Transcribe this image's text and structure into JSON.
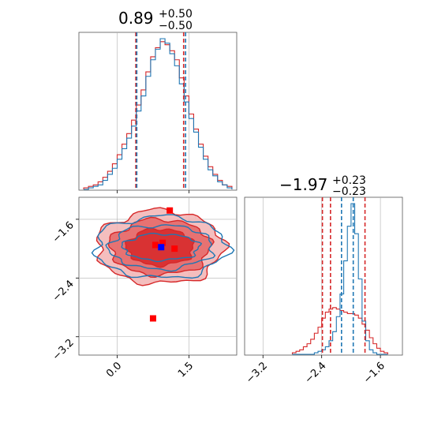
{
  "colors": {
    "red": "#d62728",
    "blue": "#1f77b4",
    "pink": "#f4a6a6",
    "marker_red": "#ff0000",
    "marker_blue": "#0000ff",
    "grid": "#b0b0b0"
  },
  "chart_data": [
    {
      "panel": "top-left",
      "type": "histogram",
      "title_main": "0.89",
      "title_sup": "+0.50",
      "title_sub": "−0.50",
      "xlim": [
        -0.8,
        2.5
      ],
      "grid": true,
      "quantiles": {
        "red": [
          0.39,
          1.39
        ],
        "blue": [
          0.41,
          1.43
        ]
      },
      "bins": [
        -0.7,
        -0.6,
        -0.5,
        -0.4,
        -0.3,
        -0.2,
        -0.1,
        0.0,
        0.1,
        0.2,
        0.3,
        0.4,
        0.5,
        0.6,
        0.7,
        0.8,
        0.9,
        1.0,
        1.1,
        1.2,
        1.3,
        1.4,
        1.5,
        1.6,
        1.7,
        1.8,
        1.9,
        2.0,
        2.1,
        2.2,
        2.3,
        2.4
      ],
      "series": [
        {
          "color": "red",
          "counts": [
            1,
            2,
            3,
            5,
            8,
            12,
            17,
            23,
            30,
            37,
            46,
            56,
            66,
            78,
            88,
            94,
            98,
            96,
            92,
            86,
            74,
            62,
            50,
            40,
            30,
            22,
            15,
            10,
            6,
            3,
            2
          ]
        },
        {
          "color": "blue",
          "counts": [
            0,
            1,
            2,
            3,
            6,
            10,
            14,
            20,
            27,
            34,
            42,
            52,
            62,
            75,
            86,
            93,
            100,
            97,
            90,
            82,
            70,
            58,
            47,
            38,
            28,
            20,
            13,
            9,
            5,
            3,
            1
          ]
        }
      ]
    },
    {
      "panel": "bottom-right",
      "type": "histogram",
      "title_main": "−1.97",
      "title_sup": "+0.23",
      "title_sub": "−0.23",
      "xlim": [
        -3.45,
        -1.3
      ],
      "grid": true,
      "xtick_labels": [
        "−3.2",
        "−2.4",
        "−1.6"
      ],
      "xtick_values": [
        -3.2,
        -2.4,
        -1.6
      ],
      "quantiles": {
        "red": [
          -2.39,
          -2.28,
          -1.81
        ],
        "blue": [
          -2.13,
          -1.97
        ]
      },
      "bins": [
        -2.8,
        -2.75,
        -2.7,
        -2.65,
        -2.6,
        -2.55,
        -2.5,
        -2.45,
        -2.4,
        -2.35,
        -2.3,
        -2.25,
        -2.2,
        -2.15,
        -2.1,
        -2.05,
        -2.0,
        -1.95,
        -1.9,
        -1.85,
        -1.8,
        -1.75,
        -1.7,
        -1.65,
        -1.6,
        -1.55,
        -1.5
      ],
      "series": [
        {
          "color": "red",
          "counts": [
            1,
            2,
            3,
            5,
            7,
            10,
            14,
            18,
            24,
            28,
            30,
            31,
            30,
            29,
            28,
            27,
            27,
            26,
            24,
            20,
            16,
            11,
            7,
            4,
            2,
            1
          ]
        },
        {
          "color": "blue",
          "counts": [
            0,
            0,
            0,
            0,
            0,
            0,
            1,
            2,
            3,
            5,
            9,
            15,
            25,
            40,
            62,
            85,
            100,
            80,
            50,
            22,
            9,
            3,
            1,
            0,
            0,
            0
          ]
        }
      ]
    },
    {
      "panel": "bottom-left",
      "type": "scatter",
      "xlim": [
        -0.8,
        2.5
      ],
      "ylim": [
        -3.45,
        -1.3
      ],
      "grid": true,
      "xtick_labels": [
        "0.0",
        "1.5"
      ],
      "xtick_values": [
        0.0,
        1.5
      ],
      "ytick_labels": [
        "−1.6",
        "−2.4",
        "−3.2"
      ],
      "ytick_values": [
        -1.6,
        -2.4,
        -3.2
      ],
      "red_points": [
        [
          1.1,
          -1.48
        ],
        [
          0.8,
          -1.95
        ],
        [
          0.95,
          -1.92
        ],
        [
          1.2,
          -2.0
        ],
        [
          0.75,
          -2.95
        ]
      ],
      "blue_point": [
        0.92,
        -1.98
      ],
      "contours_red": [
        {
          "cx": 0.9,
          "cy": -1.98,
          "rx": 0.7,
          "ry": 0.25,
          "fill": true
        },
        {
          "cx": 0.9,
          "cy": -1.98,
          "rx": 1.05,
          "ry": 0.38,
          "fill": true
        },
        {
          "cx": 0.9,
          "cy": -1.98,
          "rx": 1.32,
          "ry": 0.5,
          "fill": true
        }
      ],
      "contours_blue": [
        {
          "cx": 0.92,
          "cy": -1.98,
          "rx": 0.8,
          "ry": 0.18
        },
        {
          "cx": 0.92,
          "cy": -1.98,
          "rx": 1.08,
          "ry": 0.3
        },
        {
          "cx": 0.92,
          "cy": -1.98,
          "rx": 1.38,
          "ry": 0.42
        }
      ]
    }
  ]
}
